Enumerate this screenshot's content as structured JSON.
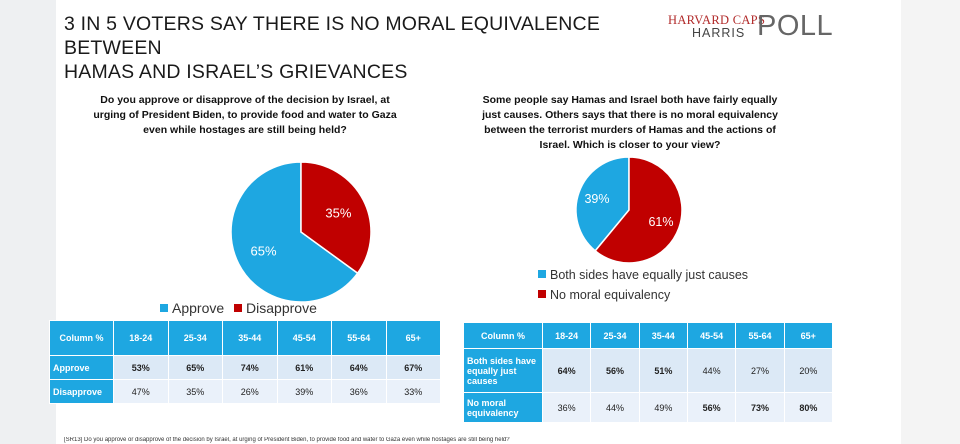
{
  "title_line1": "3 IN 5 VOTERS SAY THERE IS NO MORAL EQUIVALENCE BETWEEN",
  "title_line2": "HAMAS AND ISRAEL’S GRIEVANCES",
  "logo": {
    "line1": "HARVARD CAPS",
    "line2": "HARRIS",
    "line3": "POLL"
  },
  "colors": {
    "blue": "#1ea7e1",
    "red": "#c00000",
    "table_header": "#1ea7e1",
    "row_band1": "#dce9f6",
    "row_band2": "#eaf1fa"
  },
  "footnote": "[SR13] Do you approve or disapprove of the decision by Israel, at urging of President Biden, to provide food and water to Gaza even while hostages are still being held?",
  "chart_data": [
    {
      "type": "pie",
      "title": "Do you approve or disapprove of the decision by Israel, at urging of President Biden, to provide food and water to Gaza even while hostages are still being held?",
      "slices": [
        {
          "label": "Approve",
          "value": 65,
          "display": "65%",
          "color": "#1ea7e1"
        },
        {
          "label": "Disapprove",
          "value": 35,
          "display": "35%",
          "color": "#c00000"
        }
      ],
      "legend": "bottom"
    },
    {
      "type": "pie",
      "title": "Some people say Hamas and Israel both have fairly equally just causes. Others says that there is no moral equivalency between the terrorist murders of Hamas and the actions of Israel. Which is closer to your view?",
      "slices": [
        {
          "label": "Both sides have equally just causes",
          "value": 39,
          "display": "39%",
          "color": "#1ea7e1"
        },
        {
          "label": "No moral equivalency",
          "value": 61,
          "display": "61%",
          "color": "#c00000"
        }
      ],
      "legend": "bottom"
    }
  ],
  "tables": [
    {
      "header": [
        "Column %",
        "18-24",
        "25-34",
        "35-44",
        "45-54",
        "55-64",
        "65+"
      ],
      "rows": [
        {
          "label": "Approve",
          "cells": [
            "53%",
            "65%",
            "74%",
            "61%",
            "64%",
            "67%"
          ],
          "bold": [
            true,
            true,
            true,
            true,
            true,
            true
          ]
        },
        {
          "label": "Disapprove",
          "cells": [
            "47%",
            "35%",
            "26%",
            "39%",
            "36%",
            "33%"
          ],
          "bold": [
            false,
            false,
            false,
            false,
            false,
            false
          ]
        }
      ]
    },
    {
      "header": [
        "Column %",
        "18-24",
        "25-34",
        "35-44",
        "45-54",
        "55-64",
        "65+"
      ],
      "rows": [
        {
          "label": "Both sides have equally just causes",
          "cells": [
            "64%",
            "56%",
            "51%",
            "44%",
            "27%",
            "20%"
          ],
          "bold": [
            true,
            true,
            true,
            false,
            false,
            false
          ]
        },
        {
          "label": "No moral equivalency",
          "cells": [
            "36%",
            "44%",
            "49%",
            "56%",
            "73%",
            "80%"
          ],
          "bold": [
            false,
            false,
            false,
            true,
            true,
            true
          ]
        }
      ]
    }
  ]
}
